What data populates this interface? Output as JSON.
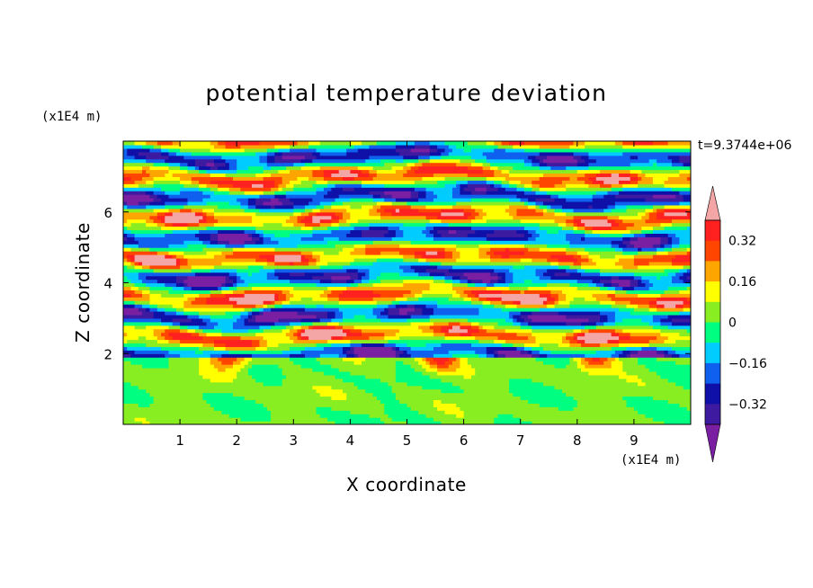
{
  "chart_data": {
    "type": "heatmap",
    "title": "potential temperature deviation",
    "xlabel": "X coordinate",
    "ylabel": "Z coordinate",
    "x_unit": "(x1E4 m)",
    "y_unit": "(x1E4 m)",
    "time_label": "t=9.3744e+06",
    "xlim": [
      0,
      10
    ],
    "ylim": [
      0,
      8
    ],
    "x_ticks": [
      1,
      2,
      3,
      4,
      5,
      6,
      7,
      8,
      9
    ],
    "y_ticks": [
      2,
      4,
      6
    ],
    "colorbar": {
      "levels": [
        -0.4,
        -0.32,
        -0.24,
        -0.16,
        -0.08,
        0,
        0.08,
        0.16,
        0.24,
        0.32,
        0.4
      ],
      "colors": [
        "#7b1fa2",
        "#3d1aa0",
        "#0f10a8",
        "#1060f0",
        "#00ccff",
        "#00ff80",
        "#88ee22",
        "#ffff00",
        "#ffa500",
        "#ff4500",
        "#ff2020",
        "#f4a6a6"
      ],
      "labels": [
        "0.32",
        "0.16",
        "0",
        "−0.16",
        "−0.32"
      ],
      "label_values": [
        0.32,
        0.16,
        0,
        -0.16,
        -0.32
      ],
      "extend": "both"
    }
  }
}
